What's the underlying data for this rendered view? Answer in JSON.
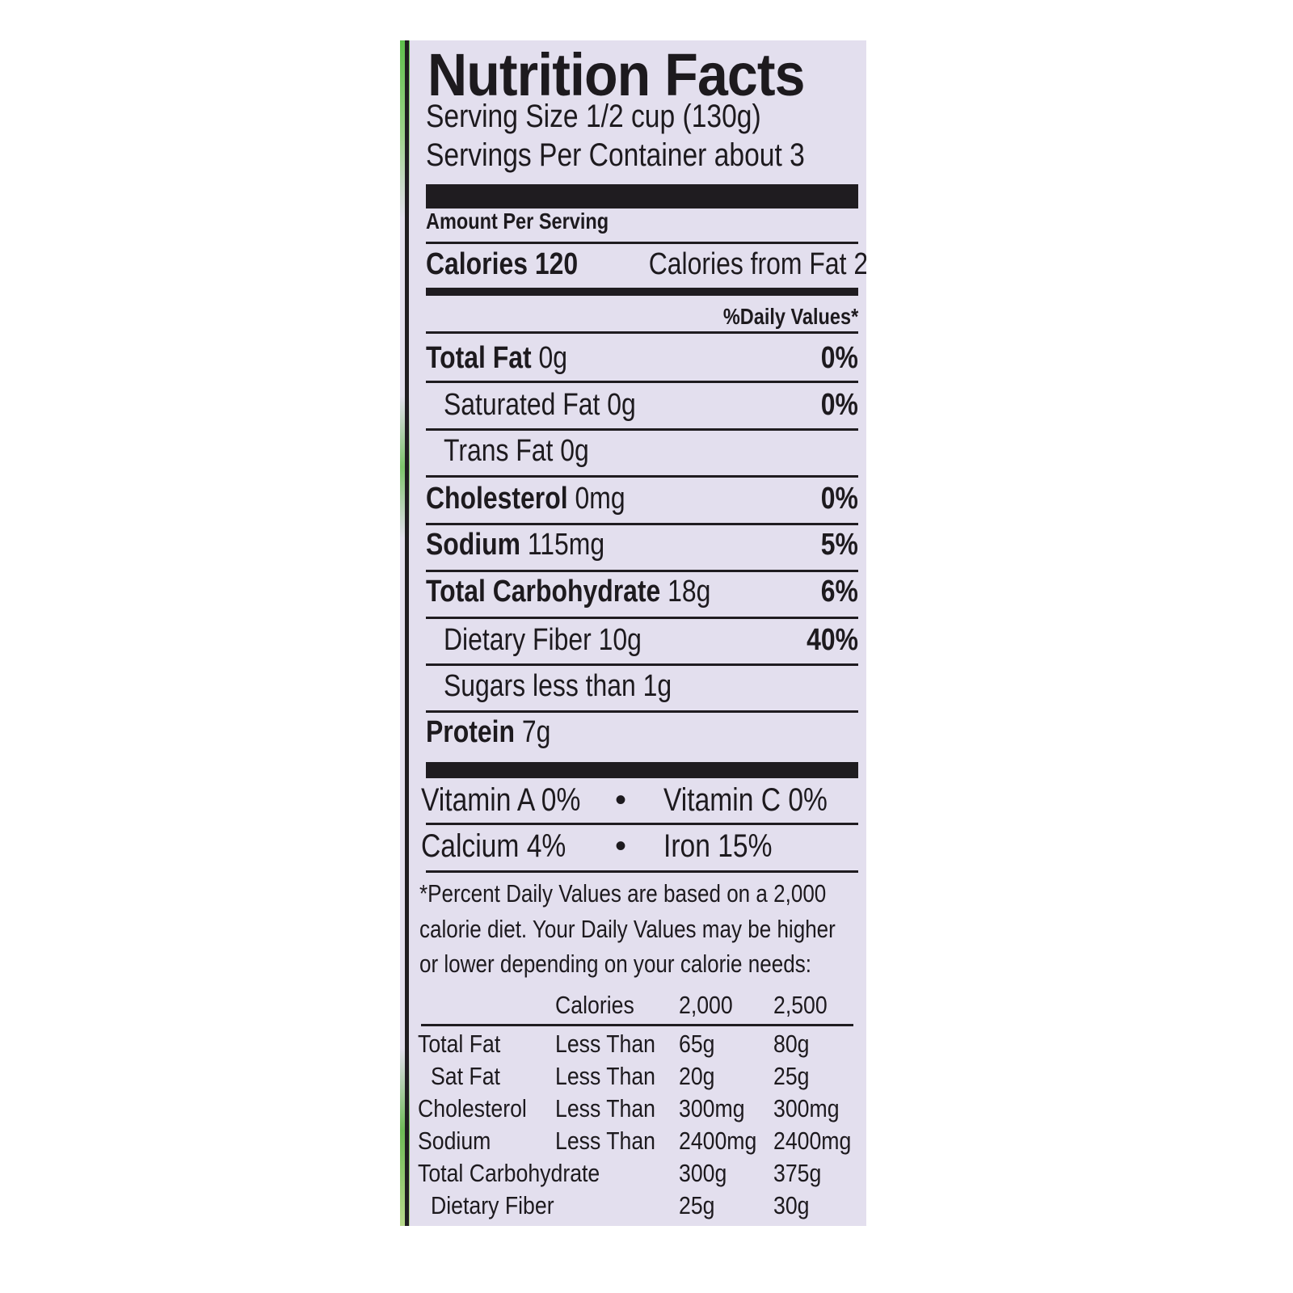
{
  "title": "Nutrition Facts",
  "serving_size": "Serving Size 1/2 cup (130g)",
  "servings_per_container": "Servings Per Container about 3",
  "amount_per_serving": "Amount Per Serving",
  "calories_label": "Calories 120",
  "calories_from_fat": "Calories from Fat 2",
  "daily_values_header": "%Daily Values*",
  "nutrients": [
    {
      "name": "Total Fat",
      "amount": "0g",
      "dv": "0%"
    },
    {
      "name": "Saturated Fat",
      "amount": "0g",
      "dv": "0%"
    },
    {
      "name": "Trans Fat",
      "amount": "0g",
      "dv": ""
    },
    {
      "name": "Cholesterol",
      "amount": "0mg",
      "dv": "0%"
    },
    {
      "name": "Sodium",
      "amount": "115mg",
      "dv": "5%"
    },
    {
      "name": "Total Carbohydrate",
      "amount": "18g",
      "dv": "6%"
    },
    {
      "name": "Dietary Fiber",
      "amount": "10g",
      "dv": "40%"
    },
    {
      "name": "Sugars",
      "amount": "less than 1g",
      "dv": ""
    },
    {
      "name": "Protein",
      "amount": "7g",
      "dv": ""
    }
  ],
  "vitamins": [
    {
      "left": "Vitamin A 0%",
      "right": "Vitamin C 0%"
    },
    {
      "left": "Calcium 4%",
      "right": "Iron 15%"
    }
  ],
  "bullet": "•",
  "footnote": [
    "*Percent Daily Values are based on a 2,000",
    "calorie diet. Your Daily Values may be higher",
    "or lower depending on your calorie needs:"
  ],
  "dv_table": {
    "header": [
      "",
      "Calories",
      "2,000",
      "2,500"
    ],
    "rows": [
      [
        "Total Fat",
        "Less Than",
        "65g",
        "80g"
      ],
      [
        "Sat Fat",
        "Less Than",
        "20g",
        "25g"
      ],
      [
        "Cholesterol",
        "Less Than",
        "300mg",
        "300mg"
      ],
      [
        "Sodium",
        "Less Than",
        "2400mg",
        "2400mg"
      ],
      [
        "Total Carbohydrate",
        "",
        "300g",
        "375g"
      ],
      [
        "Dietary Fiber",
        "",
        "25g",
        "30g"
      ]
    ]
  },
  "colors": {
    "background": "#e3dfee",
    "ink": "#1f1c20",
    "leaf": "#5cbf4a"
  }
}
